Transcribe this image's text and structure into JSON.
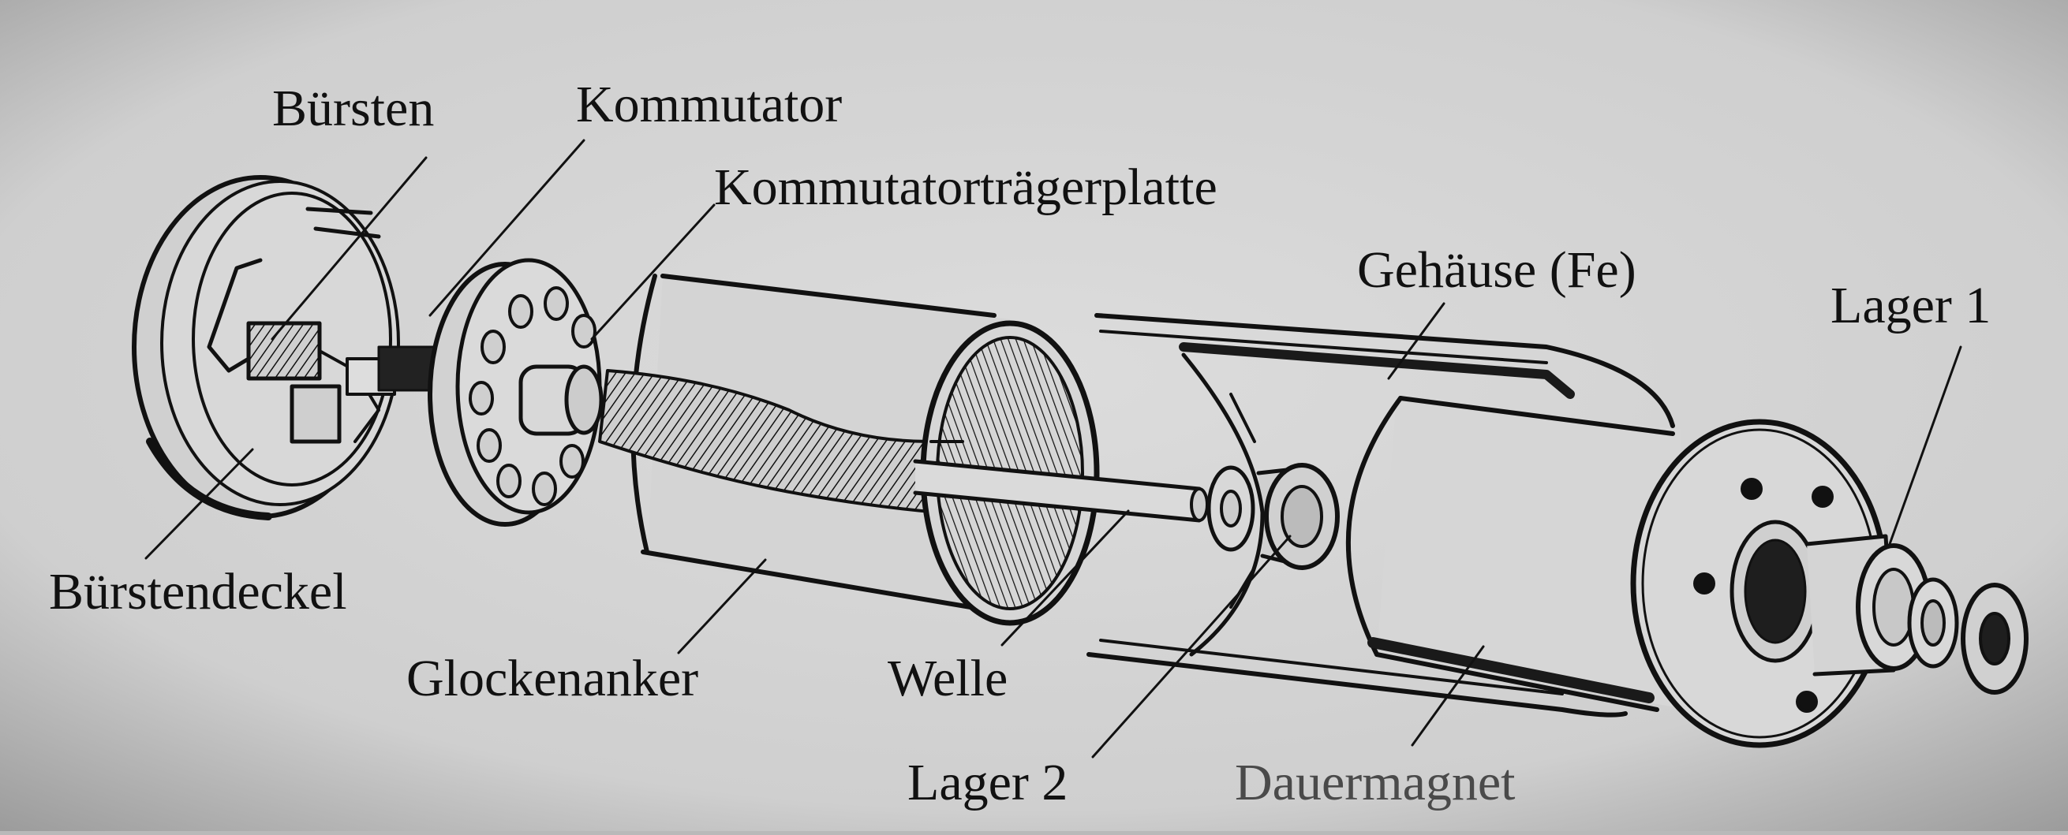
{
  "figure": {
    "background": "#d2d2d2",
    "ink": "#111111",
    "labels": {
      "buersten": "Bürsten",
      "kommutator": "Kommutator",
      "kommutatortraegerplatte": "Kommutatorträgerplatte",
      "gehaeuse": "Gehäuse (Fe)",
      "lager1": "Lager 1",
      "buerstendeckel": "Bürstendeckel",
      "glockenanker": "Glockenanker",
      "welle": "Welle",
      "lager2": "Lager 2",
      "dauermagnet": "Dauermagnet"
    }
  }
}
